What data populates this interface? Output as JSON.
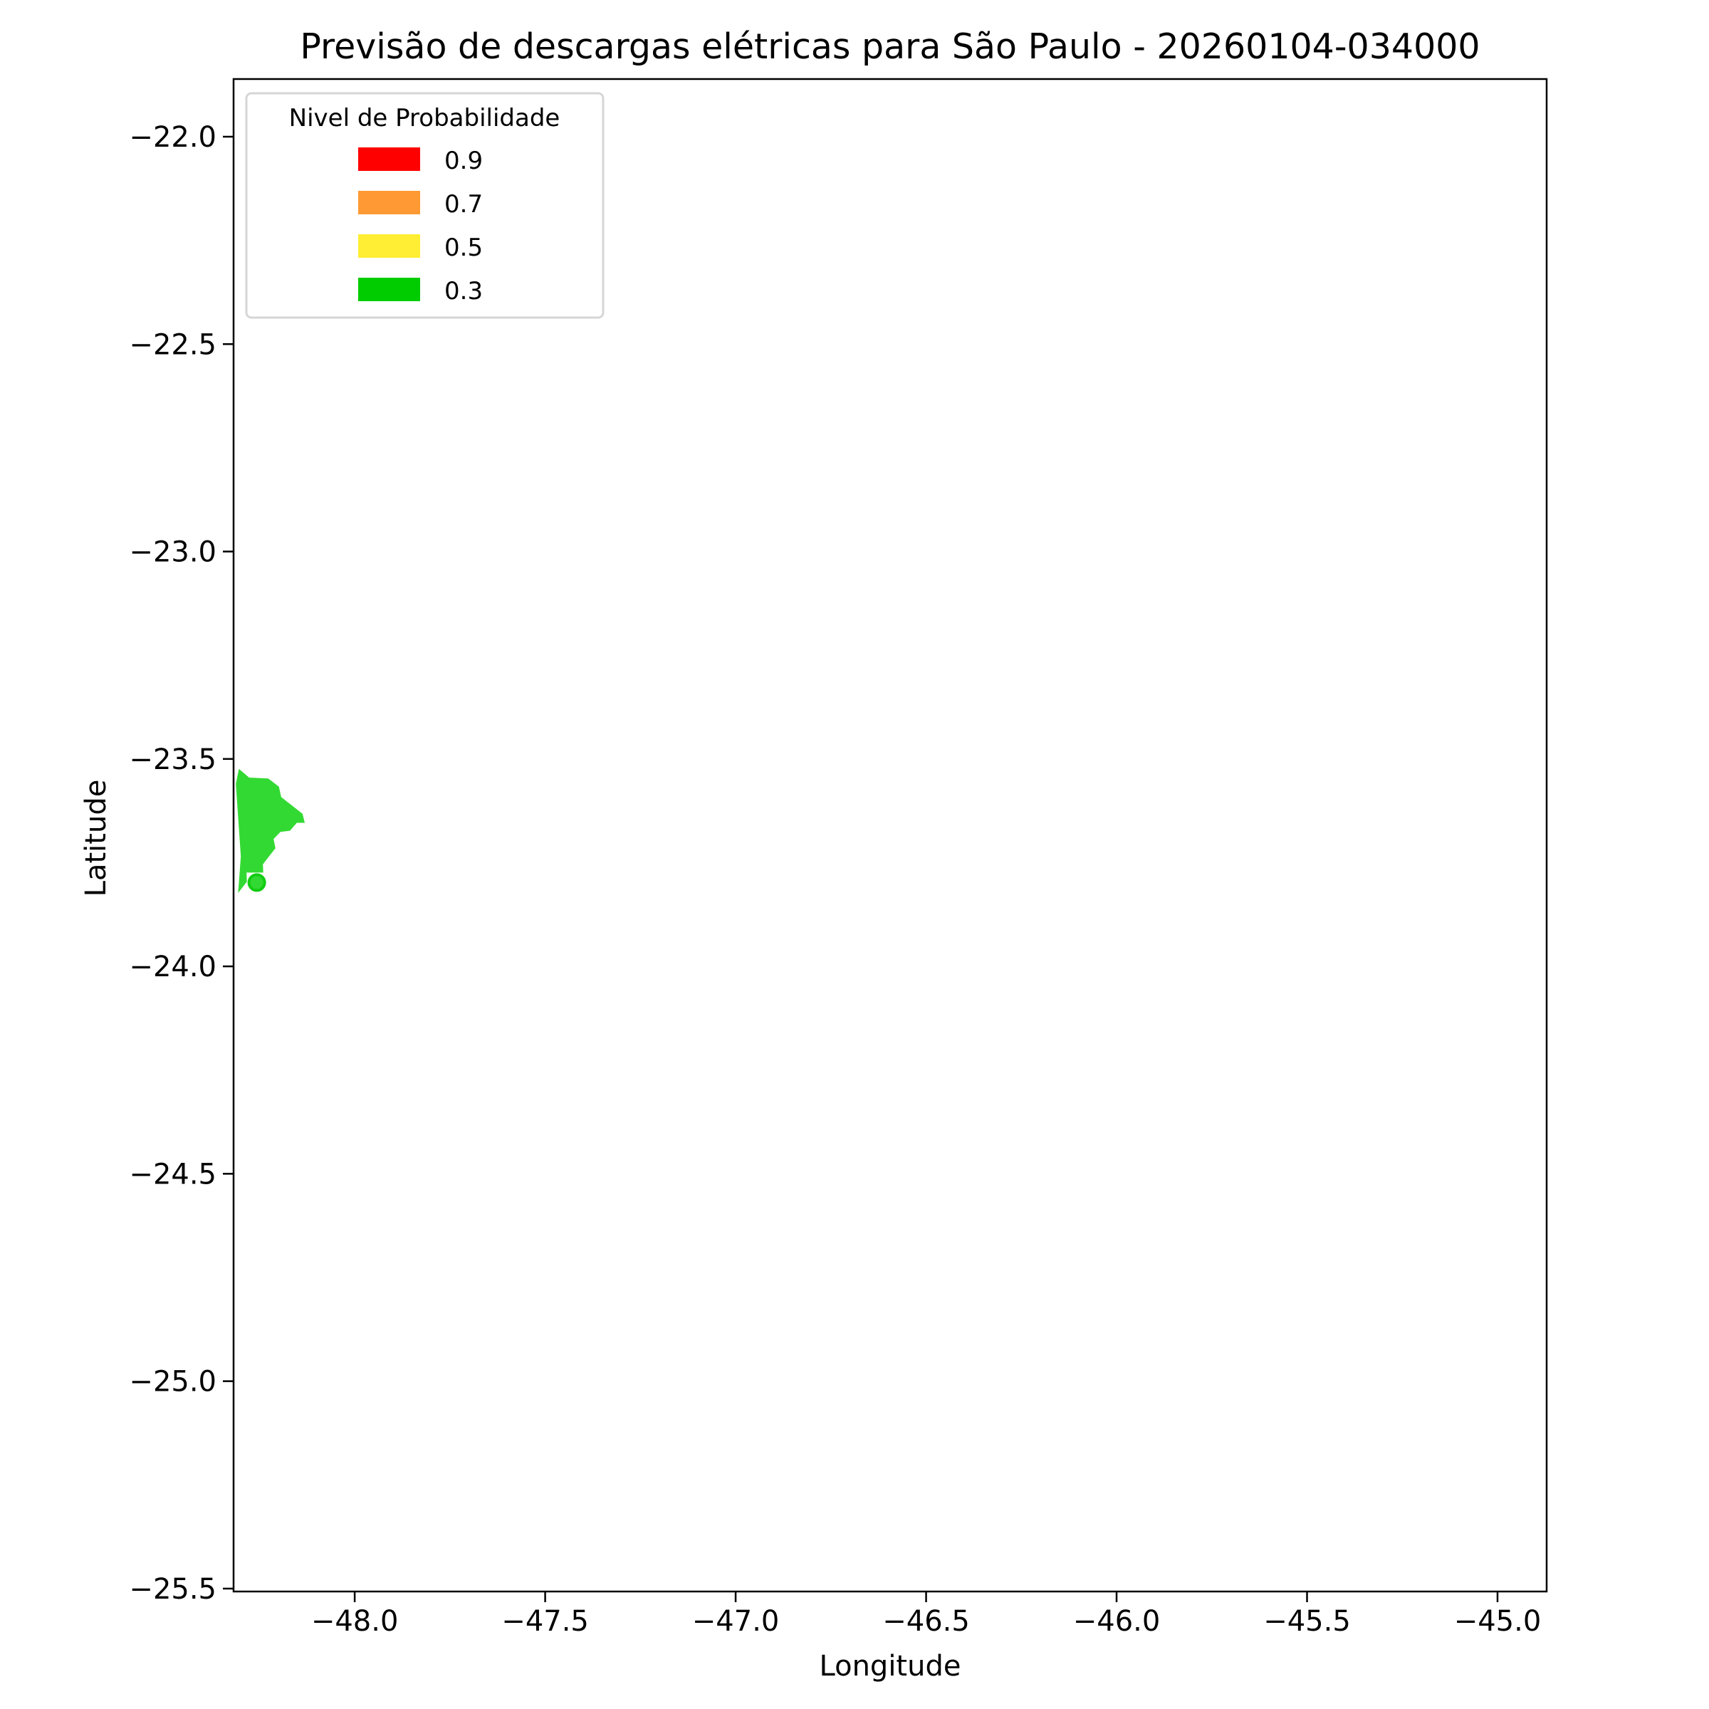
{
  "chart_data": {
    "type": "map",
    "title": "Previsão de descargas elétricas para São Paulo - 20260104-034000",
    "xlabel": "Longitude",
    "ylabel": "Latitude",
    "xlim": [
      -48.318,
      -44.871
    ],
    "ylim": [
      -25.507,
      -21.861
    ],
    "xticks": [
      -48.0,
      -47.5,
      -47.0,
      -46.5,
      -46.0,
      -45.5,
      -45.0
    ],
    "xtick_labels": [
      "−48.0",
      "−47.5",
      "−47.0",
      "−46.5",
      "−46.0",
      "−45.5",
      "−45.0"
    ],
    "yticks": [
      -22.0,
      -22.5,
      -23.0,
      -23.5,
      -24.0,
      -24.5,
      -25.0,
      -25.5
    ],
    "ytick_labels": [
      "−22.0",
      "−22.5",
      "−23.0",
      "−23.5",
      "−24.0",
      "−24.5",
      "−25.0",
      "−25.5"
    ],
    "grid": false,
    "legend": {
      "title": "Nivel de Probabilidade",
      "placement": "top-left",
      "entries": [
        {
          "label": "0.9",
          "color": "#ff0000"
        },
        {
          "label": "0.7",
          "color": "#ff9933"
        },
        {
          "label": "0.5",
          "color": "#ffee33"
        },
        {
          "label": "0.3",
          "color": "#00cc00"
        }
      ]
    },
    "polygons": [
      {
        "level": 0.3,
        "color": "#33d933",
        "coordinates": [
          [
            -48.304,
            -23.524
          ],
          [
            -48.277,
            -23.545
          ],
          [
            -48.227,
            -23.547
          ],
          [
            -48.199,
            -23.567
          ],
          [
            -48.193,
            -23.592
          ],
          [
            -48.137,
            -23.632
          ],
          [
            -48.131,
            -23.654
          ],
          [
            -48.152,
            -23.654
          ],
          [
            -48.17,
            -23.673
          ],
          [
            -48.195,
            -23.676
          ],
          [
            -48.213,
            -23.693
          ],
          [
            -48.208,
            -23.715
          ],
          [
            -48.241,
            -23.754
          ],
          [
            -48.24,
            -23.774
          ],
          [
            -48.284,
            -23.774
          ],
          [
            -48.283,
            -23.796
          ],
          [
            -48.306,
            -23.823
          ],
          [
            -48.299,
            -23.735
          ],
          [
            -48.312,
            -23.56
          ]
        ]
      }
    ],
    "points": [
      {
        "lon": -48.257,
        "lat": -23.798,
        "color": "#33d933",
        "edge_color": "#11cc11"
      }
    ]
  }
}
